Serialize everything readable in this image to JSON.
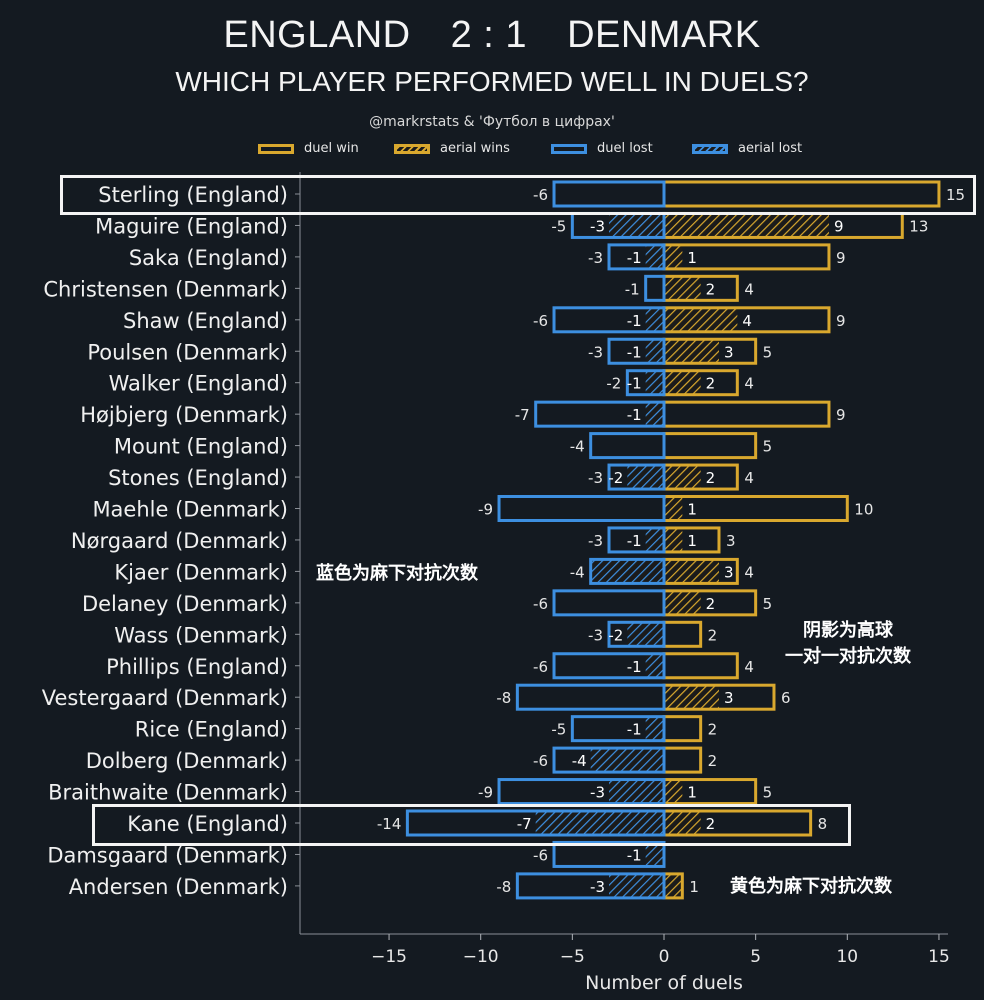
{
  "header": {
    "team_home": "ENGLAND",
    "score": "2 : 1",
    "team_away": "DENMARK",
    "subtitle": "WHICH PLAYER PERFORMED WELL IN DUELS?",
    "credit": "@markrstats & 'Футбол в цифрах'"
  },
  "legend": [
    {
      "label": "duel win",
      "style": "outline",
      "color": "#d9a82e"
    },
    {
      "label": "aerial wins",
      "style": "hatched",
      "color": "#d9a82e"
    },
    {
      "label": "duel lost",
      "style": "outline",
      "color": "#3d8fe0"
    },
    {
      "label": "aerial lost",
      "style": "hatched",
      "color": "#3d8fe0"
    }
  ],
  "annotations": {
    "blue_note": "蓝色为麻下对抗次数",
    "hatch_note_line1": "阴影为高球",
    "hatch_note_line2": "一对一对抗次数",
    "gold_note": "黄色为麻下对抗次数"
  },
  "highlighted_players": [
    "Sterling (England)",
    "Kane (England)"
  ],
  "chart_data": {
    "type": "bar",
    "orientation": "horizontal",
    "xlabel": "Number of duels",
    "xlim": [
      -20,
      16
    ],
    "xticks": [
      -15,
      -10,
      -5,
      0,
      5,
      10,
      15
    ],
    "xtick_labels": [
      "−15",
      "−10",
      "−5",
      "0",
      "5",
      "10",
      "15"
    ],
    "colors": {
      "win": "#d9a82e",
      "lost": "#3d8fe0"
    },
    "categories": [
      "Sterling (England)",
      "Maguire (England)",
      "Saka (England)",
      "Christensen (Denmark)",
      "Shaw (England)",
      "Poulsen (Denmark)",
      "Walker (England)",
      "Højbjerg (Denmark)",
      "Mount (England)",
      "Stones (England)",
      "Maehle (Denmark)",
      "Nørgaard (Denmark)",
      "Kjaer (Denmark)",
      "Delaney (Denmark)",
      "Wass (Denmark)",
      "Phillips (England)",
      "Vestergaard (Denmark)",
      "Rice (England)",
      "Dolberg (Denmark)",
      "Braithwaite (Denmark)",
      "Kane (England)",
      "Damsgaard (Denmark)",
      "Andersen (Denmark)"
    ],
    "series": [
      {
        "name": "duel win",
        "values": [
          15,
          13,
          9,
          4,
          9,
          5,
          4,
          9,
          5,
          4,
          10,
          3,
          4,
          5,
          2,
          4,
          6,
          2,
          2,
          5,
          8,
          0,
          1
        ]
      },
      {
        "name": "aerial wins",
        "values": [
          0,
          9,
          1,
          2,
          4,
          3,
          2,
          0,
          0,
          2,
          1,
          1,
          3,
          2,
          0,
          0,
          3,
          0,
          0,
          1,
          2,
          0,
          1
        ]
      },
      {
        "name": "duel lost",
        "values": [
          -6,
          -5,
          -3,
          -1,
          -6,
          -3,
          -2,
          -7,
          -4,
          -3,
          -9,
          -3,
          -4,
          -6,
          -3,
          -6,
          -8,
          -5,
          -6,
          -9,
          -14,
          -6,
          -8
        ]
      },
      {
        "name": "aerial lost",
        "values": [
          0,
          -3,
          -1,
          0,
          -1,
          -1,
          -1,
          -1,
          0,
          -2,
          0,
          -1,
          -4,
          0,
          -2,
          -1,
          0,
          -1,
          -4,
          -3,
          -7,
          -1,
          -3
        ]
      }
    ]
  }
}
